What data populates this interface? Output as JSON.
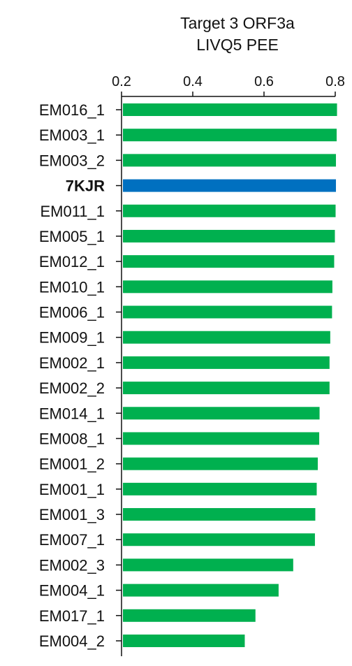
{
  "chart_data": {
    "type": "bar",
    "orientation": "horizontal",
    "title_lines": [
      "Target 3 ORF3a",
      "LIVQ5 PEE"
    ],
    "xlim": [
      0.2,
      0.8
    ],
    "xticks": [
      0.2,
      0.4,
      0.6,
      0.8
    ],
    "xtick_labels": [
      "0.2",
      "0.4",
      "0.6",
      "0.8"
    ],
    "x_axis_position": "top",
    "grid": false,
    "legend": "none",
    "highlight_category": "7KJR",
    "colors": {
      "default_bar": "#00b04f",
      "highlight_bar": "#0070c0"
    },
    "categories": [
      "EM016_1",
      "EM003_1",
      "EM003_2",
      "7KJR",
      "EM011_1",
      "EM005_1",
      "EM012_1",
      "EM010_1",
      "EM006_1",
      "EM009_1",
      "EM002_1",
      "EM002_2",
      "EM014_1",
      "EM008_1",
      "EM001_2",
      "EM001_1",
      "EM001_3",
      "EM007_1",
      "EM002_3",
      "EM004_1",
      "EM017_1",
      "EM004_2"
    ],
    "values": [
      0.805,
      0.804,
      0.802,
      0.802,
      0.801,
      0.799,
      0.797,
      0.792,
      0.791,
      0.786,
      0.784,
      0.784,
      0.756,
      0.755,
      0.751,
      0.748,
      0.744,
      0.743,
      0.682,
      0.641,
      0.576,
      0.546
    ]
  }
}
